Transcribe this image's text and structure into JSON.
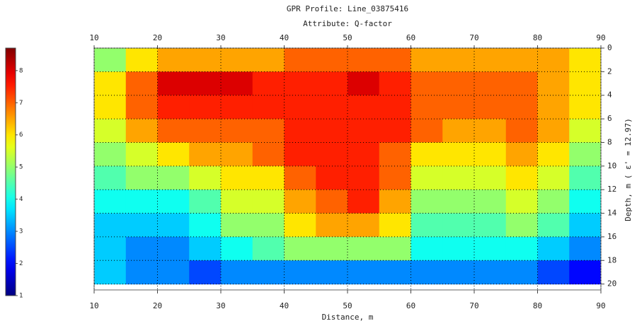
{
  "chart_data": {
    "type": "heatmap",
    "title": "GPR Profile: Line_03875416",
    "subtitle": "Attribute:  Q-factor",
    "x_label": "Distance, m",
    "y_label": "Depth, m ( ε' = 12.97)",
    "x": [
      12.5,
      17.5,
      22.5,
      27.5,
      32.5,
      37.5,
      42.5,
      47.5,
      52.5,
      57.5,
      62.5,
      67.5,
      72.5,
      77.5,
      82.5,
      87.5
    ],
    "y": [
      1,
      3,
      5,
      7,
      9,
      11,
      13,
      15,
      17,
      19
    ],
    "values": [
      [
        5,
        6,
        6.5,
        6.5,
        6.5,
        6.5,
        7,
        7,
        7,
        7,
        6.5,
        6.5,
        6.5,
        6.5,
        6.5,
        6
      ],
      [
        6,
        7,
        8,
        8,
        8,
        7.5,
        7.5,
        7.5,
        8,
        7.5,
        7,
        7,
        7,
        7,
        6.5,
        6
      ],
      [
        6,
        7,
        7.5,
        7.5,
        7.5,
        7.5,
        7.5,
        7.5,
        7.5,
        7.5,
        7,
        7,
        7,
        7,
        6.5,
        6
      ],
      [
        5.5,
        6.5,
        7,
        7,
        7,
        7,
        7.5,
        7.5,
        7.5,
        7.5,
        7,
        6.5,
        6.5,
        7,
        6.5,
        5.5
      ],
      [
        5,
        5.5,
        6,
        6.5,
        6.5,
        7,
        7.5,
        7.5,
        7.5,
        7,
        6,
        6,
        6,
        6.5,
        6,
        5
      ],
      [
        4.5,
        5,
        5,
        5.5,
        6,
        6,
        7,
        7.5,
        7.5,
        7,
        5.5,
        5.5,
        5.5,
        6,
        5.5,
        4.5
      ],
      [
        4,
        4,
        4,
        4.5,
        5.5,
        5.5,
        6.5,
        7,
        7.5,
        6.5,
        5,
        5,
        5,
        5.5,
        5,
        4
      ],
      [
        3.5,
        3.5,
        3.5,
        4,
        5,
        5,
        6,
        6.5,
        6.5,
        6,
        4.5,
        4.5,
        4.5,
        5,
        4.5,
        3.5
      ],
      [
        3.5,
        3,
        3,
        3.5,
        4,
        4.5,
        5,
        5,
        5,
        5,
        4,
        4,
        4,
        4,
        3.5,
        3
      ],
      [
        3.5,
        3,
        3,
        2.5,
        3,
        3,
        3,
        3,
        3,
        3,
        3,
        3,
        3,
        3,
        2.5,
        2
      ]
    ],
    "xlim": [
      10,
      90
    ],
    "ylim": [
      0,
      20.5
    ],
    "xticks": [
      10,
      20,
      30,
      40,
      50,
      60,
      70,
      80,
      90
    ],
    "yticks": [
      0,
      2,
      4,
      6,
      8,
      10,
      12,
      14,
      16,
      18,
      20
    ],
    "y_inverted": true,
    "colormap": "jet",
    "colorbar": {
      "lim": [
        1,
        8.7
      ],
      "ticks": [
        1,
        2,
        3,
        4,
        5,
        6,
        7,
        8
      ]
    },
    "grid": true
  }
}
